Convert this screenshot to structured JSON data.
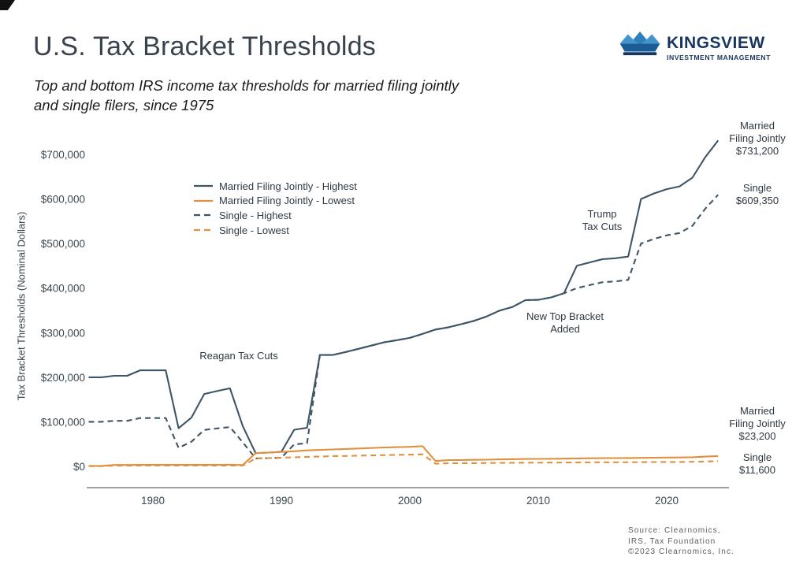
{
  "header": {
    "title": "U.S. Tax Bracket Thresholds",
    "subtitle_line1": "Top and bottom IRS income tax thresholds for married filing jointly",
    "subtitle_line2": "and single filers, since 1975"
  },
  "logo": {
    "wordmark": "KINGSVIEW",
    "tagline": "INVESTMENT MANAGEMENT",
    "navy": "#17365f",
    "light_blue": "#4194ce",
    "mid_blue": "#2f7fba",
    "body_blue": "#1c5c94"
  },
  "chart_data": {
    "type": "line",
    "title": "U.S. Tax Bracket Thresholds",
    "ylabel": "Tax Bracket Thresholds (Nominal Dollars)",
    "xlabel": "",
    "grid": false,
    "legend_position": "upper-left-inside",
    "xlim": [
      1975,
      2024
    ],
    "ylim": [
      0,
      700000
    ],
    "xticks": [
      1980,
      1990,
      2000,
      2010,
      2020
    ],
    "ytick_values": [
      0,
      100000,
      200000,
      300000,
      400000,
      500000,
      600000,
      700000
    ],
    "ytick_labels": [
      "$0",
      "$100,000",
      "$200,000",
      "$300,000",
      "$400,000",
      "$500,000",
      "$600,000",
      "$700,000"
    ],
    "x": [
      1975,
      1976,
      1977,
      1978,
      1979,
      1980,
      1981,
      1982,
      1983,
      1984,
      1985,
      1986,
      1987,
      1988,
      1989,
      1990,
      1991,
      1992,
      1993,
      1994,
      1995,
      1996,
      1997,
      1998,
      1999,
      2000,
      2001,
      2002,
      2003,
      2004,
      2005,
      2006,
      2007,
      2008,
      2009,
      2010,
      2011,
      2012,
      2013,
      2014,
      2015,
      2016,
      2017,
      2018,
      2019,
      2020,
      2021,
      2022,
      2023,
      2024
    ],
    "series": [
      {
        "name": "Married Filing Jointly - Highest",
        "color": "#3e5566",
        "dashed": false,
        "values": [
          200000,
          200000,
          203200,
          203200,
          215400,
          215400,
          215400,
          85600,
          109400,
          162400,
          169020,
          175250,
          90000,
          29750,
          30950,
          32450,
          82150,
          86500,
          250000,
          250000,
          256500,
          263750,
          271050,
          278450,
          283150,
          288350,
          297350,
          307050,
          311950,
          319100,
          326450,
          336550,
          349700,
          357700,
          372950,
          373650,
          379150,
          388350,
          450000,
          457600,
          464850,
          466950,
          470700,
          600000,
          612350,
          622050,
          628300,
          647850,
          693750,
          731200
        ]
      },
      {
        "name": "Married Filing Jointly - Lowest",
        "color": "#e0913f",
        "dashed": false,
        "values": [
          1000,
          1000,
          3200,
          3200,
          3400,
          3400,
          3400,
          3400,
          3400,
          3400,
          3540,
          3670,
          3000,
          29750,
          30950,
          32450,
          34000,
          35800,
          36900,
          38000,
          39000,
          40100,
          41200,
          42350,
          43050,
          43850,
          45200,
          12000,
          14000,
          14300,
          14600,
          15100,
          15650,
          16050,
          16700,
          16750,
          17000,
          17400,
          17850,
          18150,
          18450,
          18550,
          18650,
          19050,
          19400,
          19750,
          19900,
          20550,
          22000,
          23200
        ]
      },
      {
        "name": "Single - Highest",
        "color": "#3e5566",
        "dashed": true,
        "values": [
          100000,
          100000,
          102200,
          102200,
          108300,
          108300,
          108300,
          41500,
          55300,
          81800,
          85130,
          88270,
          54000,
          17850,
          18550,
          19450,
          49300,
          51900,
          250000,
          250000,
          256500,
          263750,
          271050,
          278450,
          283150,
          288350,
          297350,
          307050,
          311950,
          319100,
          326450,
          336550,
          349700,
          357700,
          372950,
          373650,
          379150,
          388350,
          400000,
          406750,
          413200,
          415050,
          418400,
          500000,
          510300,
          518400,
          523600,
          539900,
          578125,
          609350
        ]
      },
      {
        "name": "Single - Lowest",
        "color": "#e0913f",
        "dashed": true,
        "values": [
          500,
          500,
          1600,
          1600,
          1700,
          1700,
          1700,
          1700,
          1700,
          1700,
          1800,
          1800,
          1800,
          17850,
          18550,
          19450,
          20350,
          21450,
          22100,
          22750,
          23350,
          24000,
          24650,
          25350,
          25750,
          26250,
          27050,
          6000,
          7000,
          7150,
          7300,
          7550,
          7825,
          8025,
          8350,
          8375,
          8500,
          8700,
          8925,
          9075,
          9225,
          9275,
          9325,
          9525,
          9700,
          9875,
          9950,
          10275,
          11000,
          11600
        ]
      }
    ],
    "annotations": [
      {
        "lines": [
          "Reagan Tax Cuts"
        ],
        "x": 303,
        "y": 444
      },
      {
        "lines": [
          "New Top Bracket",
          "Added"
        ],
        "x": 717,
        "y": 394
      },
      {
        "lines": [
          "Trump",
          "Tax Cuts"
        ],
        "x": 764,
        "y": 264
      }
    ],
    "end_labels": [
      {
        "lines": [
          "Married",
          "Filing Jointly",
          "$731,200"
        ],
        "x": 961,
        "y": 152
      },
      {
        "lines": [
          "Single",
          "$609,350"
        ],
        "x": 961,
        "y": 231
      },
      {
        "lines": [
          "Married",
          "Filing Jointly",
          "$23,200"
        ],
        "x": 961,
        "y": 514
      },
      {
        "lines": [
          "Single",
          "$11,600"
        ],
        "x": 961,
        "y": 573
      }
    ]
  },
  "source": {
    "line1": "Source: Clearnomics,",
    "line2": "IRS, Tax Foundation",
    "line3": "©2023 Clearnomics, Inc."
  },
  "colors": {
    "axis": "#9e9ea3",
    "tick_text": "#3b4750"
  }
}
